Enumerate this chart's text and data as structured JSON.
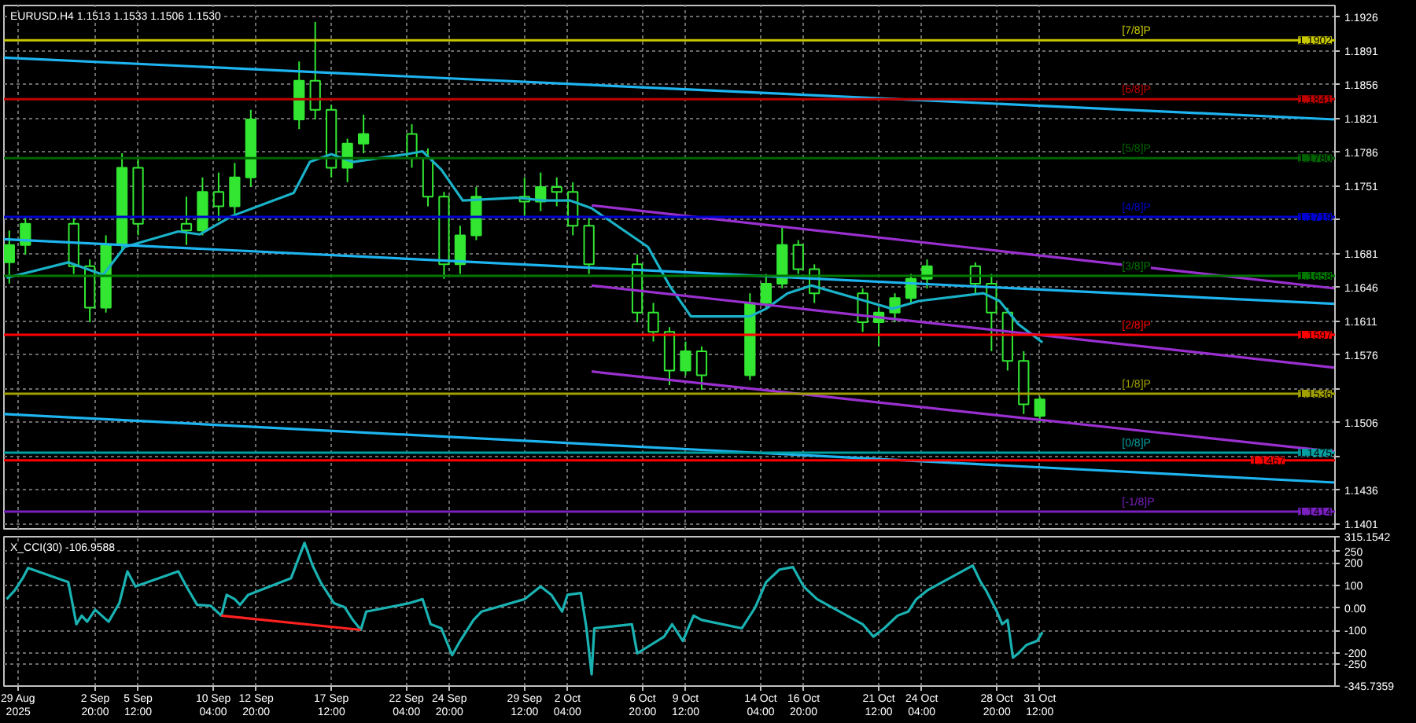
{
  "chart_data": [
    {
      "type": "candlestick",
      "title": "EURUSD.H4  1.1513 1.1533 1.1506 1.1530",
      "color": "#32e632",
      "x": [
        "2025-08-28T12:00",
        "2025-08-29T12:00",
        "2025-09-01T12:00",
        "2025-09-02T12:00",
        "2025-09-03T12:00",
        "2025-09-04T12:00",
        "2025-09-05T12:00",
        "2025-09-08T12:00",
        "2025-09-09T12:00",
        "2025-09-10T12:00",
        "2025-09-11T12:00",
        "2025-09-12T12:00",
        "2025-09-15T12:00",
        "2025-09-16T12:00",
        "2025-09-17T12:00",
        "2025-09-18T12:00",
        "2025-09-19T12:00",
        "2025-09-22T12:00",
        "2025-09-23T12:00",
        "2025-09-24T12:00",
        "2025-09-25T12:00",
        "2025-09-26T12:00",
        "2025-09-29T12:00",
        "2025-09-30T12:00",
        "2025-10-01T12:00",
        "2025-10-02T12:00",
        "2025-10-03T12:00",
        "2025-10-06T12:00",
        "2025-10-07T12:00",
        "2025-10-08T12:00",
        "2025-10-09T12:00",
        "2025-10-10T12:00",
        "2025-10-13T12:00",
        "2025-10-14T12:00",
        "2025-10-15T12:00",
        "2025-10-16T12:00",
        "2025-10-17T12:00",
        "2025-10-20T12:00",
        "2025-10-21T12:00",
        "2025-10-22T12:00",
        "2025-10-23T12:00",
        "2025-10-24T12:00",
        "2025-10-27T12:00",
        "2025-10-28T12:00",
        "2025-10-29T12:00",
        "2025-10-30T12:00",
        "2025-10-31T12:00"
      ],
      "ohlc": [
        [
          1.1672,
          1.1705,
          1.165,
          1.169
        ],
        [
          1.169,
          1.172,
          1.168,
          1.1712
        ],
        [
          1.1712,
          1.1718,
          1.166,
          1.1668
        ],
        [
          1.1668,
          1.1675,
          1.161,
          1.1625
        ],
        [
          1.1625,
          1.17,
          1.162,
          1.169
        ],
        [
          1.169,
          1.1785,
          1.1685,
          1.177
        ],
        [
          1.177,
          1.178,
          1.17,
          1.1712
        ],
        [
          1.1712,
          1.174,
          1.169,
          1.1705
        ],
        [
          1.1705,
          1.176,
          1.17,
          1.1745
        ],
        [
          1.1745,
          1.1765,
          1.1715,
          1.173
        ],
        [
          1.173,
          1.1775,
          1.172,
          1.176
        ],
        [
          1.176,
          1.183,
          1.175,
          1.182
        ],
        [
          1.182,
          1.188,
          1.181,
          1.186
        ],
        [
          1.186,
          1.1921,
          1.182,
          1.183
        ],
        [
          1.183,
          1.1835,
          1.176,
          1.177
        ],
        [
          1.177,
          1.18,
          1.1755,
          1.1795
        ],
        [
          1.1795,
          1.1825,
          1.1785,
          1.1805
        ],
        [
          1.1805,
          1.1815,
          1.177,
          1.178
        ],
        [
          1.178,
          1.179,
          1.173,
          1.174
        ],
        [
          1.174,
          1.1745,
          1.1655,
          1.167
        ],
        [
          1.167,
          1.171,
          1.166,
          1.17
        ],
        [
          1.17,
          1.175,
          1.1695,
          1.174
        ],
        [
          1.174,
          1.176,
          1.172,
          1.1735
        ],
        [
          1.1735,
          1.1765,
          1.1725,
          1.175
        ],
        [
          1.175,
          1.176,
          1.173,
          1.1745
        ],
        [
          1.1745,
          1.1755,
          1.17,
          1.171
        ],
        [
          1.171,
          1.172,
          1.166,
          1.167
        ],
        [
          1.167,
          1.168,
          1.161,
          1.162
        ],
        [
          1.162,
          1.163,
          1.159,
          1.16
        ],
        [
          1.16,
          1.1605,
          1.1545,
          1.156
        ],
        [
          1.156,
          1.159,
          1.1555,
          1.158
        ],
        [
          1.158,
          1.1585,
          1.154,
          1.1555
        ],
        [
          1.1555,
          1.164,
          1.155,
          1.163
        ],
        [
          1.163,
          1.166,
          1.1625,
          1.165
        ],
        [
          1.165,
          1.171,
          1.1645,
          1.169
        ],
        [
          1.169,
          1.1695,
          1.166,
          1.1665
        ],
        [
          1.1665,
          1.167,
          1.163,
          1.164
        ],
        [
          1.164,
          1.1645,
          1.16,
          1.161
        ],
        [
          1.161,
          1.1625,
          1.1585,
          1.162
        ],
        [
          1.162,
          1.164,
          1.161,
          1.1635
        ],
        [
          1.1635,
          1.166,
          1.163,
          1.1655
        ],
        [
          1.1655,
          1.1675,
          1.1645,
          1.1668
        ],
        [
          1.1668,
          1.1672,
          1.164,
          1.165
        ],
        [
          1.165,
          1.166,
          1.158,
          1.162
        ],
        [
          1.162,
          1.1625,
          1.156,
          1.157
        ],
        [
          1.157,
          1.158,
          1.1515,
          1.1525
        ],
        [
          1.1513,
          1.1533,
          1.1506,
          1.153
        ]
      ],
      "series": [
        {
          "type": "line",
          "color": "#1ab2c8",
          "x": [
            "2025-08-28T08:00",
            "2025-09-01T04:00",
            "2025-09-03T08:00",
            "2025-09-04T16:00",
            "2025-09-08T00:00",
            "2025-09-09T08:00",
            "2025-09-11T08:00",
            "2025-09-15T04:00",
            "2025-09-16T04:00",
            "2025-09-17T12:00",
            "2025-09-18T20:00",
            "2025-09-22T04:00",
            "2025-09-23T04:00",
            "2025-09-24T08:00",
            "2025-09-25T16:00",
            "2025-09-29T00:00",
            "2025-09-30T16:00",
            "2025-10-02T08:00",
            "2025-10-03T16:00",
            "2025-10-07T04:00",
            "2025-10-08T12:00",
            "2025-10-09T20:00",
            "2025-10-13T12:00",
            "2025-10-14T12:00",
            "2025-10-15T20:00",
            "2025-10-17T08:00",
            "2025-10-20T16:00",
            "2025-10-22T08:00",
            "2025-10-24T00:00",
            "2025-10-28T00:00",
            "2025-10-29T00:00",
            "2025-10-30T04:00",
            "2025-10-31T16:00"
          ],
          "values": [
            1.1656,
            1.1672,
            1.1659,
            1.1688,
            1.1704,
            1.1701,
            1.172,
            1.1744,
            1.1776,
            1.1784,
            1.1776,
            1.1784,
            1.1787,
            1.1768,
            1.1736,
            1.1739,
            1.1736,
            1.1736,
            1.1728,
            1.1688,
            1.1648,
            1.1616,
            1.1616,
            1.1624,
            1.164,
            1.1648,
            1.1632,
            1.1624,
            1.1632,
            1.164,
            1.1632,
            1.1608,
            1.1589
          ]
        },
        {
          "type": "line",
          "color": "#1eb4f0",
          "x": [
            "2025-08-28T04:00",
            "2025-11-18T20:00"
          ],
          "values": [
            1.1884,
            1.182
          ]
        },
        {
          "type": "line",
          "color": "#1eb4f0",
          "x": [
            "2025-08-28T04:00",
            "2025-11-18T20:00"
          ],
          "values": [
            1.1696,
            1.1629
          ]
        },
        {
          "type": "line",
          "color": "#1eb4f0",
          "x": [
            "2025-08-28T04:00",
            "2025-11-18T20:00"
          ],
          "values": [
            1.1515,
            1.1444
          ]
        },
        {
          "type": "line",
          "color": "#9b30d0",
          "x": [
            "2025-10-03T16:00",
            "2025-11-18T20:00"
          ],
          "values": [
            1.1731,
            1.1645
          ]
        },
        {
          "type": "line",
          "color": "#9b30d0",
          "x": [
            "2025-10-03T16:00",
            "2025-11-18T20:00"
          ],
          "values": [
            1.1648,
            1.1563
          ]
        },
        {
          "type": "line",
          "color": "#9b30d0",
          "x": [
            "2025-10-03T16:00",
            "2025-11-18T20:00"
          ],
          "values": [
            1.1559,
            1.1476
          ]
        }
      ],
      "ref_lines": [
        {
          "axis": "y",
          "value": 1.1902,
          "label": "[7/8]P",
          "color": "#c8c800"
        },
        {
          "axis": "y",
          "value": 1.1841,
          "label": "[6/8]P",
          "color": "#c00000"
        },
        {
          "axis": "y",
          "value": 1.178,
          "label": "[5/8]P",
          "color": "#006400"
        },
        {
          "axis": "y",
          "value": 1.1719,
          "label": "[4/8]P",
          "color": "#0000d0"
        },
        {
          "axis": "y",
          "value": 1.1658,
          "label": "[3/8]P",
          "color": "#007800"
        },
        {
          "axis": "y",
          "value": 1.1597,
          "label": "[2/8]P",
          "color": "#ff0000"
        },
        {
          "axis": "y",
          "value": 1.1536,
          "label": "[1/8]P",
          "color": "#a0a000"
        },
        {
          "axis": "y",
          "value": 1.1475,
          "label": "[0/8]P",
          "color": "#00a0a0"
        },
        {
          "axis": "y",
          "value": 1.1467,
          "label": null,
          "color": "#ff0000"
        },
        {
          "axis": "y",
          "value": 1.1414,
          "label": "[-1/8]P",
          "color": "#7a1fc0"
        }
      ],
      "annotations": [
        {
          "text": "1.1902",
          "y": 1.1902
        },
        {
          "text": "1.1841",
          "y": 1.1841
        },
        {
          "text": "1.1780",
          "y": 1.178
        },
        {
          "text": "1.1719",
          "y": 1.1719
        },
        {
          "text": "1.1658",
          "y": 1.1658
        },
        {
          "text": "1.1597",
          "y": 1.1597
        },
        {
          "text": "1.1536",
          "y": 1.1536
        },
        {
          "text": "1.1475",
          "y": 1.1475
        },
        {
          "text": "1.1467",
          "y": 1.1467
        },
        {
          "text": "1.1414",
          "y": 1.1414
        }
      ],
      "xlim": [
        "2025-08-28T04:00",
        "2025-11-18T20:00"
      ],
      "ylim": [
        1.1396,
        1.1938
      ],
      "xticks": [
        {
          "value": "2025-08-29",
          "label": null
        },
        {
          "value": "2025-09-02T20:00",
          "label": null
        },
        {
          "value": "2025-09-05T12:00",
          "label": null
        },
        {
          "value": "2025-09-10T04:00",
          "label": null
        },
        {
          "value": "2025-09-12T20:00",
          "label": null
        },
        {
          "value": "2025-09-17T12:00",
          "label": null
        },
        {
          "value": "2025-09-22T04:00",
          "label": null
        },
        {
          "value": "2025-09-24T20:00",
          "label": null
        },
        {
          "value": "2025-09-29T12:00",
          "label": null
        },
        {
          "value": "2025-10-02T04:00",
          "label": null
        },
        {
          "value": "2025-10-06T20:00",
          "label": null
        },
        {
          "value": "2025-10-09T12:00",
          "label": null
        },
        {
          "value": "2025-10-14T04:00",
          "label": null
        },
        {
          "value": "2025-10-16T20:00",
          "label": null
        },
        {
          "value": "2025-10-21T12:00",
          "label": null
        },
        {
          "value": "2025-10-24T04:00",
          "label": null
        },
        {
          "value": "2025-10-28T20:00",
          "label": null
        },
        {
          "value": "2025-10-31T12:00",
          "label": null
        }
      ],
      "yticks": [
        1.1926,
        1.1891,
        1.1856,
        1.1821,
        1.1786,
        1.1751,
        {
          "value": 1.1716,
          "label": null
        },
        1.1681,
        1.1646,
        1.1611,
        1.1576,
        {
          "value": 1.1541,
          "label": null
        },
        1.1506,
        {
          "value": 1.1471,
          "label": null
        },
        1.1436,
        1.1401
      ],
      "grid": true,
      "tick_labels": "y"
    },
    {
      "type": "line",
      "title": "X_CCI(30) -106.9588",
      "series": [
        {
          "color": "#1ab2b2",
          "x": [
            "2025-08-28T08:00",
            "2025-08-28T20:00",
            "2025-08-29T08:00",
            "2025-08-29T16:00",
            "2025-09-01T04:00",
            "2025-09-01T16:00",
            "2025-09-02T00:00",
            "2025-09-02T08:00",
            "2025-09-02T20:00",
            "2025-09-03T16:00",
            "2025-09-04T08:00",
            "2025-09-04T20:00",
            "2025-09-05T08:00",
            "2025-09-08T00:00",
            "2025-09-08T12:00",
            "2025-09-09T04:00",
            "2025-09-10T00:00",
            "2025-09-10T16:00",
            "2025-09-11T00:00",
            "2025-09-11T12:00",
            "2025-09-11T20:00",
            "2025-09-12T08:00",
            "2025-09-15T00:00",
            "2025-09-15T20:00",
            "2025-09-16T08:00",
            "2025-09-16T20:00",
            "2025-09-17T16:00",
            "2025-09-18T08:00",
            "2025-09-18T20:00",
            "2025-09-19T08:00",
            "2025-09-19T16:00",
            "2025-09-22T08:00",
            "2025-09-23T04:00",
            "2025-09-23T16:00",
            "2025-09-24T08:00",
            "2025-09-25T00:00",
            "2025-09-25T12:00",
            "2025-09-26T08:00",
            "2025-09-26T20:00",
            "2025-09-29T12:00",
            "2025-09-30T12:00",
            "2025-10-01T04:00",
            "2025-10-01T20:00",
            "2025-10-02T04:00",
            "2025-10-03T00:00",
            "2025-10-03T08:00",
            "2025-10-03T16:00",
            "2025-10-03T20:00",
            "2025-10-06T04:00",
            "2025-10-06T12:00",
            "2025-10-07T08:00",
            "2025-10-08T04:00",
            "2025-10-08T16:00",
            "2025-10-09T08:00",
            "2025-10-10T00:00",
            "2025-10-10T12:00",
            "2025-10-13T00:00",
            "2025-10-13T20:00",
            "2025-10-14T12:00",
            "2025-10-15T08:00",
            "2025-10-16T04:00",
            "2025-10-16T20:00",
            "2025-10-17T16:00",
            "2025-10-20T12:00",
            "2025-10-21T04:00",
            "2025-10-21T20:00",
            "2025-10-22T16:00",
            "2025-10-23T08:00",
            "2025-10-23T20:00",
            "2025-10-24T12:00",
            "2025-10-27T08:00",
            "2025-10-27T20:00",
            "2025-10-28T04:00",
            "2025-10-28T20:00",
            "2025-10-29T04:00",
            "2025-10-29T12:00",
            "2025-10-29T20:00",
            "2025-10-30T04:00",
            "2025-10-30T16:00",
            "2025-10-31T08:00",
            "2025-10-31T16:00"
          ],
          "values": [
            39,
            77,
            132,
            177,
            114,
            -72,
            -34,
            -61,
            -8,
            -61,
            21,
            162,
            95,
            162,
            95,
            14,
            10,
            -34,
            58,
            39,
            14,
            58,
            132,
            288,
            188,
            114,
            21,
            3,
            -53,
            -97,
            -16,
            21,
            39,
            -72,
            -90,
            -209,
            -146,
            -53,
            -16,
            39,
            95,
            58,
            -16,
            58,
            66,
            -83,
            -294,
            -90,
            -72,
            -201,
            -164,
            -127,
            -72,
            -146,
            -34,
            -53,
            -90,
            3,
            114,
            170,
            181,
            95,
            39,
            -72,
            -127,
            -90,
            -34,
            -16,
            39,
            77,
            188,
            114,
            77,
            -16,
            -72,
            -53,
            -220,
            -201,
            -164,
            -146,
            -107
          ]
        },
        {
          "color": "#ff2020",
          "x": [
            "2025-09-10T16:00",
            "2025-09-19T08:00"
          ],
          "values": [
            -34,
            -97
          ]
        }
      ],
      "xlim": [
        "2025-08-28T04:00",
        "2025-11-18T20:00"
      ],
      "ylim": [
        -345.7359,
        315.1542
      ],
      "xticks": [
        {
          "value": "2025-08-29",
          "label": "29 Aug 2025"
        },
        {
          "value": "2025-09-02T20:00",
          "label": "2 Sep 20:00"
        },
        {
          "value": "2025-09-05T12:00",
          "label": "5 Sep 12:00"
        },
        {
          "value": "2025-09-10T04:00",
          "label": "10 Sep 04:00"
        },
        {
          "value": "2025-09-12T20:00",
          "label": "12 Sep 20:00"
        },
        {
          "value": "2025-09-17T12:00",
          "label": "17 Sep 12:00"
        },
        {
          "value": "2025-09-22T04:00",
          "label": "22 Sep 04:00"
        },
        {
          "value": "2025-09-24T20:00",
          "label": "24 Sep 20:00"
        },
        {
          "value": "2025-09-29T12:00",
          "label": "29 Sep 12:00"
        },
        {
          "value": "2025-10-02T04:00",
          "label": "2 Oct 04:00"
        },
        {
          "value": "2025-10-06T20:00",
          "label": "6 Oct 20:00"
        },
        {
          "value": "2025-10-09T12:00",
          "label": "9 Oct 12:00"
        },
        {
          "value": "2025-10-14T04:00",
          "label": "14 Oct 04:00"
        },
        {
          "value": "2025-10-16T20:00",
          "label": "16 Oct 20:00"
        },
        {
          "value": "2025-10-21T12:00",
          "label": "21 Oct 12:00"
        },
        {
          "value": "2025-10-24T04:00",
          "label": "24 Oct 04:00"
        },
        {
          "value": "2025-10-28T20:00",
          "label": "28 Oct 20:00"
        },
        {
          "value": "2025-10-31T12:00",
          "label": "31 Oct 12:00"
        }
      ],
      "yticks": [
        {
          "value": 315.1542,
          "label": "315.1542"
        },
        250,
        200,
        100,
        {
          "value": 0,
          "label": "0.00"
        },
        -100,
        -200,
        -250,
        {
          "value": -345.7359,
          "label": "-345.7359"
        }
      ],
      "grid": true
    }
  ]
}
